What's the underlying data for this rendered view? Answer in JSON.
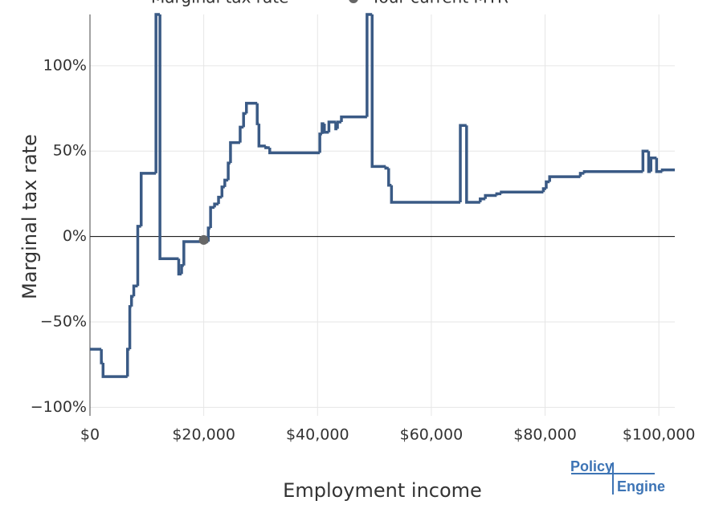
{
  "chart_data": {
    "type": "step",
    "legend": [
      "Marginal tax rate",
      "Your current MTR"
    ],
    "xlabel": "Employment income",
    "ylabel": "Marginal tax rate",
    "logo": [
      "Policy",
      "Engine"
    ],
    "xlim": [
      0,
      102800
    ],
    "ylim": [
      -105,
      130
    ],
    "xticks": [
      {
        "value": 0,
        "label": "$0"
      },
      {
        "value": 20000,
        "label": "$20,000"
      },
      {
        "value": 40000,
        "label": "$40,000"
      },
      {
        "value": 60000,
        "label": "$60,000"
      },
      {
        "value": 80000,
        "label": "$80,000"
      },
      {
        "value": 100000,
        "label": "$100,000"
      }
    ],
    "yticks": [
      {
        "value": -100,
        "label": "−100%"
      },
      {
        "value": -50,
        "label": "−50%"
      },
      {
        "value": 0,
        "label": "0%"
      },
      {
        "value": 50,
        "label": "50%"
      },
      {
        "value": 100,
        "label": "100%"
      }
    ],
    "grid": true,
    "series": [
      {
        "name": "Marginal tax rate",
        "color": "#3a5a85",
        "x": [
          0,
          2000,
          2300,
          6600,
          7000,
          7300,
          7700,
          8400,
          9000,
          11600,
          12300,
          15600,
          16100,
          16500,
          20800,
          21200,
          21900,
          22600,
          23200,
          23700,
          24300,
          24700,
          26400,
          27000,
          27500,
          29400,
          29700,
          30900,
          31600,
          40400,
          40800,
          41200,
          42000,
          43200,
          43500,
          44200,
          48700,
          49600,
          52000,
          52500,
          53000,
          65100,
          66200,
          68600,
          69500,
          71500,
          72300,
          79700,
          80200,
          80800,
          86200,
          86900,
          97200,
          98200,
          98600,
          99600,
          100600
        ],
        "values": [
          -66,
          -74,
          -82,
          -66,
          -41,
          -35,
          -29,
          6,
          37,
          130,
          -13,
          -22,
          -17,
          -3,
          5,
          17,
          19,
          23,
          29,
          33,
          43,
          55,
          64,
          72,
          78,
          66,
          53,
          52,
          49,
          60,
          66,
          61,
          67,
          63,
          67,
          70,
          130,
          41,
          40,
          30,
          20,
          65,
          20,
          22,
          24,
          25,
          26,
          28,
          32,
          35,
          37,
          38,
          50,
          38,
          46,
          38,
          39
        ]
      },
      {
        "name": "Your current MTR",
        "color": "#666666",
        "x": [
          20000
        ],
        "values": [
          -2
        ]
      }
    ]
  }
}
